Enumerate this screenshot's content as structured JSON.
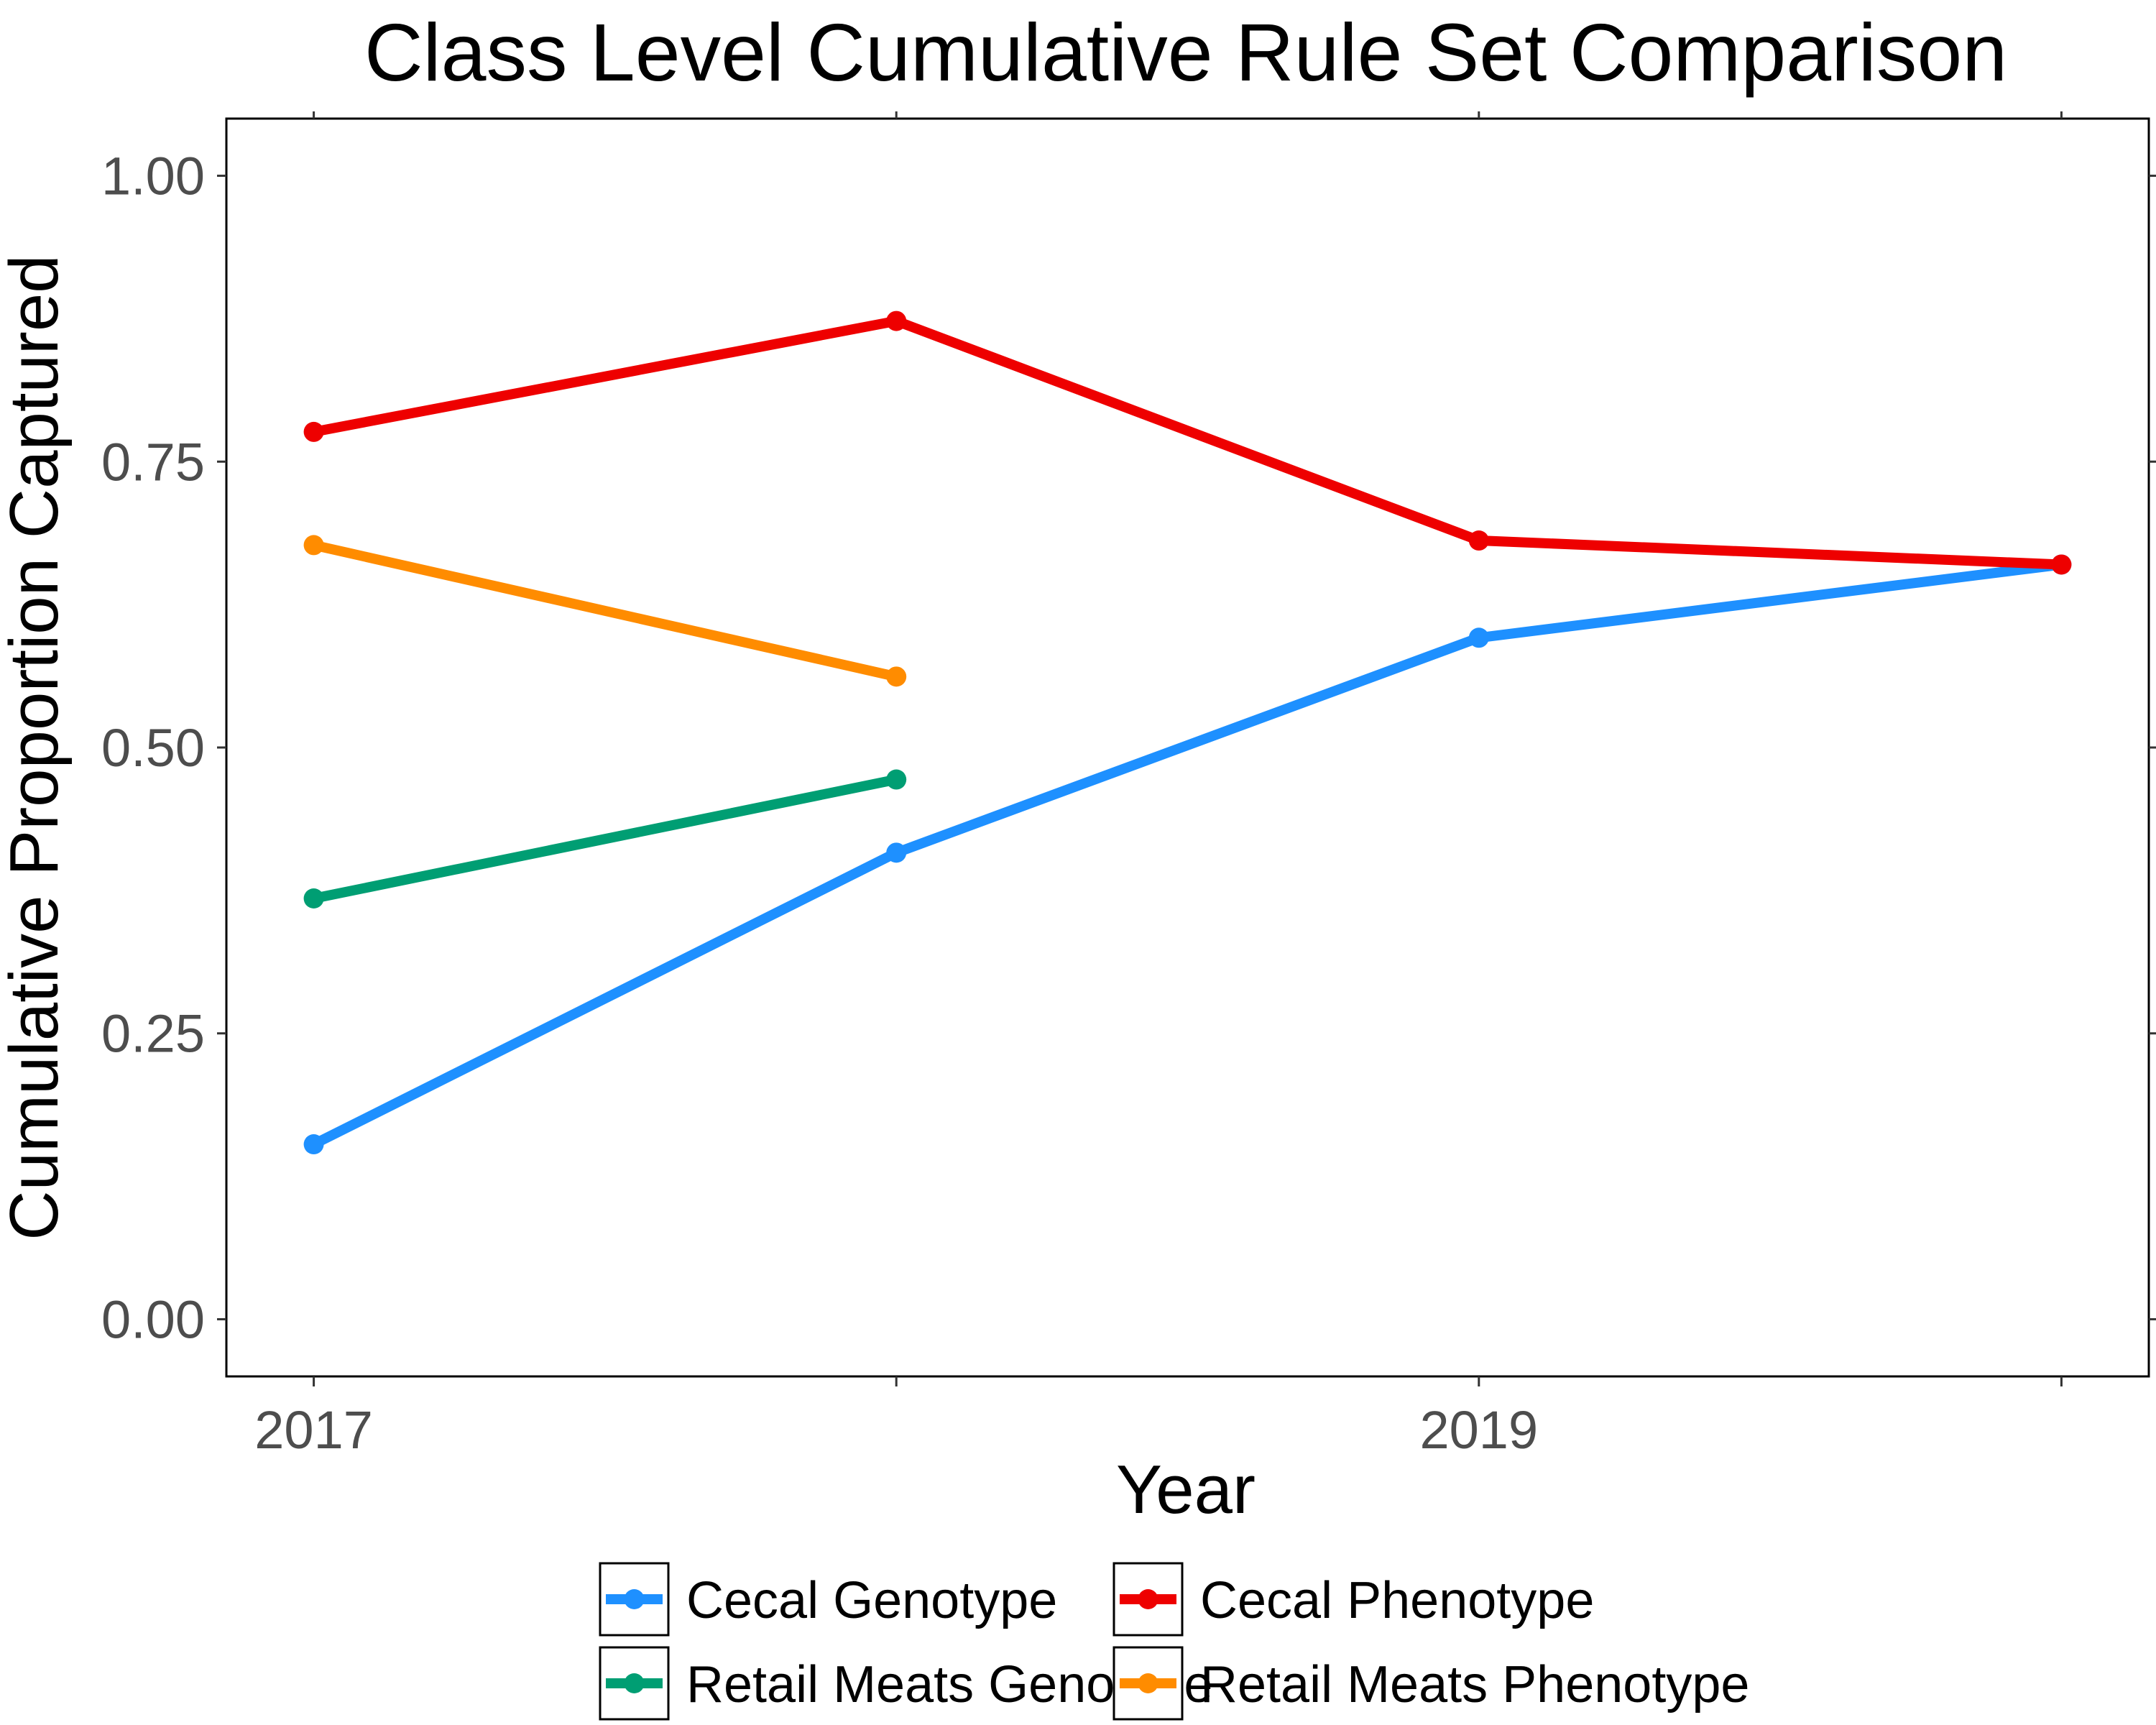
{
  "chart_data": {
    "type": "line",
    "title": "Class Level Cumulative Rule Set Comparison",
    "xlabel": "Year",
    "ylabel": "Cumulative Proportion Captured",
    "x": [
      2017,
      2018,
      2019,
      2020
    ],
    "x_ticks": [
      2017,
      2018,
      2019,
      2020
    ],
    "x_tick_labels": [
      "2017",
      "",
      "2019",
      ""
    ],
    "xlim": [
      2016.85,
      2020.15
    ],
    "y_ticks": [
      0.0,
      0.25,
      0.5,
      0.75,
      1.0
    ],
    "y_tick_labels": [
      "0.00",
      "0.25",
      "0.50",
      "0.75",
      "1.00"
    ],
    "ylim": [
      -0.05,
      1.05
    ],
    "grid": false,
    "legend_position": "bottom",
    "series": [
      {
        "name": "Cecal Genotype",
        "color": "#1E90FF",
        "x": [
          2017,
          2018,
          2019,
          2020
        ],
        "values": [
          0.153,
          0.408,
          0.596,
          0.66
        ]
      },
      {
        "name": "Cecal Phenotype",
        "color": "#EE0000",
        "x": [
          2017,
          2018,
          2019,
          2020
        ],
        "values": [
          0.776,
          0.873,
          0.681,
          0.66
        ]
      },
      {
        "name": "Retail Meats Genotype",
        "color": "#009E73",
        "x": [
          2017,
          2018
        ],
        "values": [
          0.368,
          0.472
        ]
      },
      {
        "name": "Retail Meats Phenotype",
        "color": "#FF8C00",
        "x": [
          2017,
          2018
        ],
        "values": [
          0.677,
          0.562
        ]
      }
    ],
    "legend_order": [
      0,
      2,
      1,
      3
    ]
  }
}
